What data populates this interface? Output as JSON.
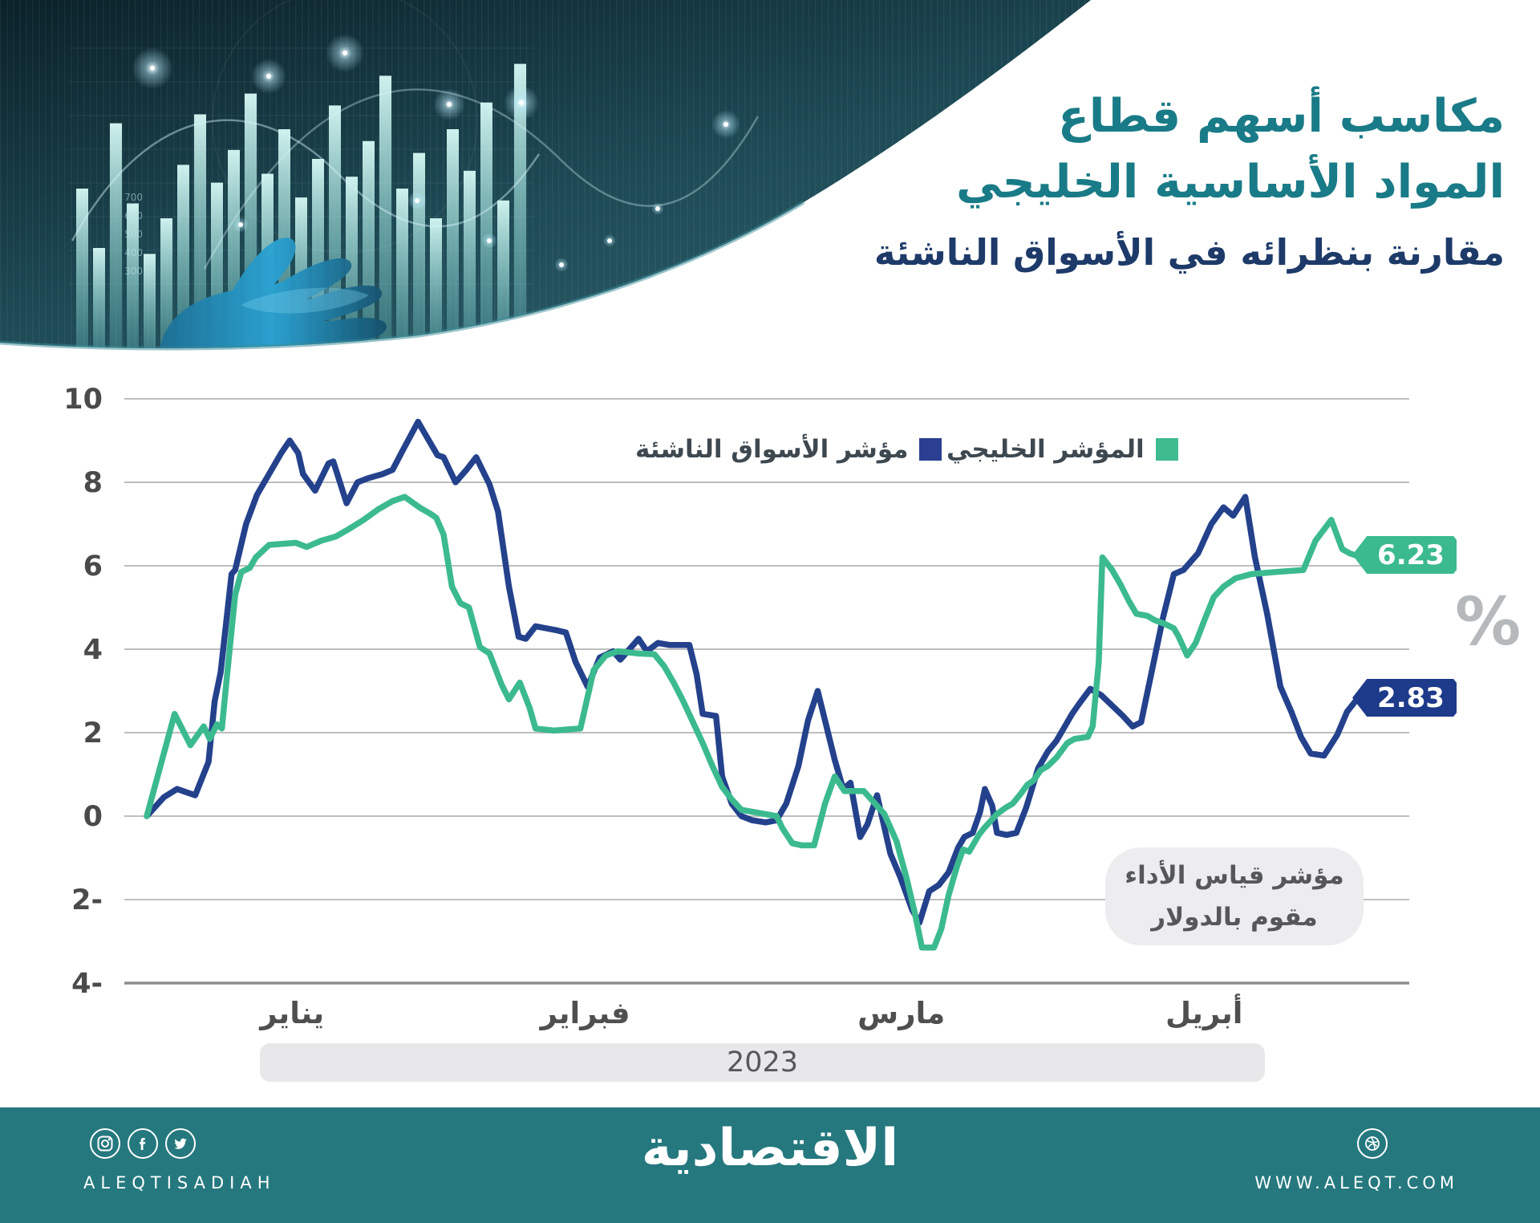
{
  "header": {
    "title_line1": "مكاسب أسهم قطاع",
    "title_line2": "المواد الأساسية الخليجي",
    "subtitle": "مقارنة بنظرائه في الأسواق الناشئة",
    "accent_teal": "#197b87",
    "accent_navy": "#1d3a69",
    "banner_axis_numbers": [
      "700",
      "600",
      "500",
      "400",
      "300"
    ],
    "banner_bar_heights": [
      0.5,
      0.3,
      0.72,
      0.45,
      0.28,
      0.4,
      0.58,
      0.75,
      0.52,
      0.63,
      0.82,
      0.55,
      0.7,
      0.47,
      0.6,
      0.78,
      0.54,
      0.66,
      0.88,
      0.5,
      0.62,
      0.4,
      0.7,
      0.56,
      0.79,
      0.46,
      0.92
    ]
  },
  "chart_data": {
    "type": "line",
    "title": "مكاسب أسهم قطاع المواد الأساسية الخليجي مقارنة بنظرائه في الأسواق الناشئة",
    "unit_symbol": "%",
    "year_label": "2023",
    "ylim": [
      -4,
      10
    ],
    "grid": true,
    "legend_position": "top-center",
    "note_line1": "مؤشر قياس الأداء",
    "note_line2": "مقوم بالدولار",
    "y_ticks": [
      {
        "label": "10",
        "value": 10
      },
      {
        "label": "8",
        "value": 8
      },
      {
        "label": "6",
        "value": 6
      },
      {
        "label": "4",
        "value": 4
      },
      {
        "label": "2",
        "value": 2
      },
      {
        "label": "0",
        "value": 0
      },
      {
        "label": "2-",
        "value": -2
      },
      {
        "label": "4-",
        "value": -4
      }
    ],
    "x_months": [
      {
        "label": "يناير",
        "pct": 12
      },
      {
        "label": "فبراير",
        "pct": 36.2
      },
      {
        "label": "مارس",
        "pct": 62.3
      },
      {
        "label": "أبريل",
        "pct": 87.3
      }
    ],
    "series": [
      {
        "name": "المؤشر الخليجي",
        "color": "#3cba8f",
        "end_label": "6.23",
        "end_value": 6.23,
        "x_unit": "pct_of_period",
        "points": [
          [
            0,
            0
          ],
          [
            2.3,
            2.45
          ],
          [
            3.6,
            1.7
          ],
          [
            4.7,
            2.15
          ],
          [
            5.2,
            1.85
          ],
          [
            5.8,
            2.2
          ],
          [
            6.2,
            2.1
          ],
          [
            6.6,
            3.3
          ],
          [
            7.3,
            5.3
          ],
          [
            7.8,
            5.85
          ],
          [
            8.5,
            5.95
          ],
          [
            9,
            6.2
          ],
          [
            10.1,
            6.5
          ],
          [
            12.3,
            6.55
          ],
          [
            13.2,
            6.45
          ],
          [
            14.4,
            6.6
          ],
          [
            15.6,
            6.7
          ],
          [
            16.8,
            6.9
          ],
          [
            17.9,
            7.1
          ],
          [
            19.1,
            7.35
          ],
          [
            20.3,
            7.55
          ],
          [
            21.3,
            7.65
          ],
          [
            22.5,
            7.4
          ],
          [
            23.4,
            7.25
          ],
          [
            23.9,
            7.15
          ],
          [
            24.5,
            6.75
          ],
          [
            25.2,
            5.5
          ],
          [
            25.9,
            5.1
          ],
          [
            26.6,
            5.0
          ],
          [
            27.5,
            4.05
          ],
          [
            28.3,
            3.9
          ],
          [
            29.3,
            3.15
          ],
          [
            29.9,
            2.8
          ],
          [
            30.8,
            3.2
          ],
          [
            31.6,
            2.6
          ],
          [
            32.1,
            2.1
          ],
          [
            33.6,
            2.05
          ],
          [
            35.8,
            2.1
          ],
          [
            36.9,
            3.5
          ],
          [
            37.9,
            3.85
          ],
          [
            38.9,
            3.95
          ],
          [
            40.5,
            3.9
          ],
          [
            41.9,
            3.88
          ],
          [
            42.7,
            3.6
          ],
          [
            43.5,
            3.2
          ],
          [
            44.3,
            2.75
          ],
          [
            45.1,
            2.25
          ],
          [
            45.9,
            1.75
          ],
          [
            46.7,
            1.2
          ],
          [
            47.5,
            0.7
          ],
          [
            48.3,
            0.4
          ],
          [
            49.1,
            0.15
          ],
          [
            50.1,
            0.1
          ],
          [
            52,
            0
          ],
          [
            52.5,
            -0.3
          ],
          [
            53.3,
            -0.65
          ],
          [
            54.1,
            -0.7
          ],
          [
            55.1,
            -0.7
          ],
          [
            56,
            0.3
          ],
          [
            56.8,
            0.95
          ],
          [
            57.6,
            0.6
          ],
          [
            59.2,
            0.6
          ],
          [
            60.9,
            0.05
          ],
          [
            61.9,
            -0.6
          ],
          [
            62.7,
            -1.45
          ],
          [
            63.4,
            -2.3
          ],
          [
            64,
            -3.15
          ],
          [
            65,
            -3.15
          ],
          [
            65.6,
            -2.7
          ],
          [
            66.2,
            -1.9
          ],
          [
            66.9,
            -1.2
          ],
          [
            67.4,
            -0.8
          ],
          [
            67.9,
            -0.85
          ],
          [
            68.7,
            -0.45
          ],
          [
            69.1,
            -0.3
          ],
          [
            70.2,
            0.05
          ],
          [
            70.9,
            0.2
          ],
          [
            71.5,
            0.3
          ],
          [
            72.2,
            0.55
          ],
          [
            72.7,
            0.75
          ],
          [
            73.2,
            0.85
          ],
          [
            73.8,
            1.1
          ],
          [
            74.4,
            1.2
          ],
          [
            75.1,
            1.4
          ],
          [
            76,
            1.75
          ],
          [
            76.6,
            1.85
          ],
          [
            77.7,
            1.9
          ],
          [
            78.1,
            2.15
          ],
          [
            78.6,
            3.7
          ],
          [
            78.9,
            6.2
          ],
          [
            79.7,
            5.9
          ],
          [
            80.4,
            5.55
          ],
          [
            81.1,
            5.15
          ],
          [
            81.7,
            4.85
          ],
          [
            82.6,
            4.8
          ],
          [
            83.2,
            4.7
          ],
          [
            84.1,
            4.6
          ],
          [
            84.8,
            4.5
          ],
          [
            85.2,
            4.3
          ],
          [
            85.9,
            3.85
          ],
          [
            86.6,
            4.15
          ],
          [
            87.4,
            4.75
          ],
          [
            88.1,
            5.25
          ],
          [
            88.9,
            5.5
          ],
          [
            89.9,
            5.7
          ],
          [
            91.2,
            5.8
          ],
          [
            93.2,
            5.85
          ],
          [
            95.5,
            5.9
          ],
          [
            96.5,
            6.6
          ],
          [
            97.8,
            7.1
          ],
          [
            98.7,
            6.4
          ],
          [
            99.3,
            6.3
          ],
          [
            100,
            6.23
          ]
        ]
      },
      {
        "name": "مؤشر الأسواق الناشئة",
        "color": "#24418c",
        "end_label": "2.83",
        "end_value": 2.83,
        "x_unit": "pct_of_period",
        "points": [
          [
            0,
            0
          ],
          [
            1.4,
            0.45
          ],
          [
            2.5,
            0.65
          ],
          [
            3.5,
            0.55
          ],
          [
            4,
            0.5
          ],
          [
            5.1,
            1.3
          ],
          [
            5.6,
            2.75
          ],
          [
            6.1,
            3.45
          ],
          [
            7,
            5.8
          ],
          [
            7.3,
            5.9
          ],
          [
            8.2,
            7
          ],
          [
            9.1,
            7.7
          ],
          [
            10.1,
            8.2
          ],
          [
            11.1,
            8.7
          ],
          [
            11.8,
            9
          ],
          [
            12.5,
            8.7
          ],
          [
            12.9,
            8.2
          ],
          [
            13.9,
            7.8
          ],
          [
            15,
            8.45
          ],
          [
            15.4,
            8.5
          ],
          [
            16.5,
            7.5
          ],
          [
            17.4,
            8
          ],
          [
            18.3,
            8.1
          ],
          [
            19.5,
            8.2
          ],
          [
            20.3,
            8.3
          ],
          [
            21.2,
            8.8
          ],
          [
            22.4,
            9.45
          ],
          [
            23.4,
            8.95
          ],
          [
            24,
            8.65
          ],
          [
            24.5,
            8.6
          ],
          [
            25.5,
            8
          ],
          [
            26.4,
            8.3
          ],
          [
            27.2,
            8.6
          ],
          [
            28.3,
            7.95
          ],
          [
            29,
            7.3
          ],
          [
            29.9,
            5.5
          ],
          [
            30.7,
            4.3
          ],
          [
            31.3,
            4.25
          ],
          [
            32.1,
            4.55
          ],
          [
            33,
            4.5
          ],
          [
            33.9,
            4.45
          ],
          [
            34.6,
            4.4
          ],
          [
            35.4,
            3.7
          ],
          [
            36.4,
            3.1
          ],
          [
            37.4,
            3.8
          ],
          [
            38.5,
            3.95
          ],
          [
            39.1,
            3.75
          ],
          [
            40.6,
            4.25
          ],
          [
            41.3,
            3.95
          ],
          [
            42.2,
            4.15
          ],
          [
            43.2,
            4.1
          ],
          [
            44.8,
            4.1
          ],
          [
            45.4,
            3.4
          ],
          [
            45.9,
            2.45
          ],
          [
            47,
            2.4
          ],
          [
            47.5,
            0.95
          ],
          [
            48.3,
            0.3
          ],
          [
            49.1,
            0
          ],
          [
            50,
            -0.1
          ],
          [
            51.1,
            -0.15
          ],
          [
            52,
            -0.1
          ],
          [
            52.8,
            0.3
          ],
          [
            53.8,
            1.2
          ],
          [
            54.6,
            2.3
          ],
          [
            55.4,
            3
          ],
          [
            56.8,
            1.35
          ],
          [
            57.5,
            0.65
          ],
          [
            58.1,
            0.8
          ],
          [
            58.9,
            -0.5
          ],
          [
            59.5,
            -0.2
          ],
          [
            60.3,
            0.5
          ],
          [
            61.4,
            -0.9
          ],
          [
            62.2,
            -1.45
          ],
          [
            63.2,
            -2.25
          ],
          [
            63.8,
            -2.55
          ],
          [
            64.6,
            -1.8
          ],
          [
            65.4,
            -1.65
          ],
          [
            66.2,
            -1.35
          ],
          [
            67,
            -0.75
          ],
          [
            67.5,
            -0.5
          ],
          [
            68.2,
            -0.4
          ],
          [
            68.8,
            0.1
          ],
          [
            69.2,
            0.65
          ],
          [
            69.8,
            0.25
          ],
          [
            70.2,
            -0.4
          ],
          [
            71,
            -0.45
          ],
          [
            71.8,
            -0.4
          ],
          [
            72.6,
            0.2
          ],
          [
            73.6,
            1.15
          ],
          [
            74.4,
            1.55
          ],
          [
            75.1,
            1.8
          ],
          [
            75.8,
            2.15
          ],
          [
            76.4,
            2.45
          ],
          [
            77,
            2.7
          ],
          [
            77.9,
            3.05
          ],
          [
            78.8,
            2.9
          ],
          [
            79.7,
            2.65
          ],
          [
            80.6,
            2.4
          ],
          [
            81.4,
            2.15
          ],
          [
            82.1,
            2.25
          ],
          [
            83,
            3.5
          ],
          [
            83.9,
            4.75
          ],
          [
            84.8,
            5.8
          ],
          [
            85.6,
            5.9
          ],
          [
            86.8,
            6.3
          ],
          [
            87.9,
            7
          ],
          [
            88.9,
            7.4
          ],
          [
            89.7,
            7.2
          ],
          [
            90.7,
            7.65
          ],
          [
            91.5,
            6.2
          ],
          [
            92.5,
            4.85
          ],
          [
            93.6,
            3.1
          ],
          [
            94.5,
            2.5
          ],
          [
            95.3,
            1.9
          ],
          [
            96.1,
            1.5
          ],
          [
            97.2,
            1.45
          ],
          [
            98.3,
            1.95
          ],
          [
            99.1,
            2.5
          ],
          [
            100,
            2.83
          ]
        ]
      }
    ]
  },
  "footer": {
    "background": "#25787e",
    "brand_en": "ALEQTISADIAH",
    "logo_ar": "الاقتصادية",
    "url": "WWW.ALEQT.COM",
    "social_icons": [
      "instagram-icon",
      "facebook-icon",
      "twitter-icon"
    ],
    "site_icon": "dribbble-icon"
  }
}
